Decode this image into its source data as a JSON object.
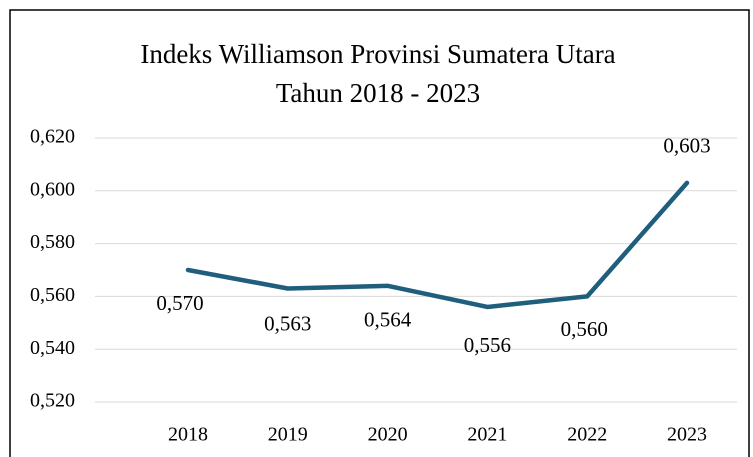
{
  "chart_data": {
    "type": "line",
    "title": [
      "Indeks Williamson Provinsi Sumatera Utara",
      "Tahun 2018 - 2023"
    ],
    "categories": [
      "2018",
      "2019",
      "2020",
      "2021",
      "2022",
      "2023"
    ],
    "series": [
      {
        "name": "Indeks Williamson",
        "color": "#1f5e7d",
        "values": [
          0.57,
          0.563,
          0.564,
          0.556,
          0.56,
          0.603
        ],
        "value_labels": [
          "0,570",
          "0,563",
          "0,564",
          "0,556",
          "0,560",
          "0,603"
        ]
      }
    ],
    "ylim": [
      0.52,
      0.62
    ],
    "yticks": [
      {
        "value": 0.52,
        "label": "0,520"
      },
      {
        "value": 0.54,
        "label": "0,540"
      },
      {
        "value": 0.56,
        "label": "0,560"
      },
      {
        "value": 0.58,
        "label": "0,580"
      },
      {
        "value": 0.6,
        "label": "0,600"
      },
      {
        "value": 0.62,
        "label": "0,620"
      }
    ],
    "grid": true
  }
}
